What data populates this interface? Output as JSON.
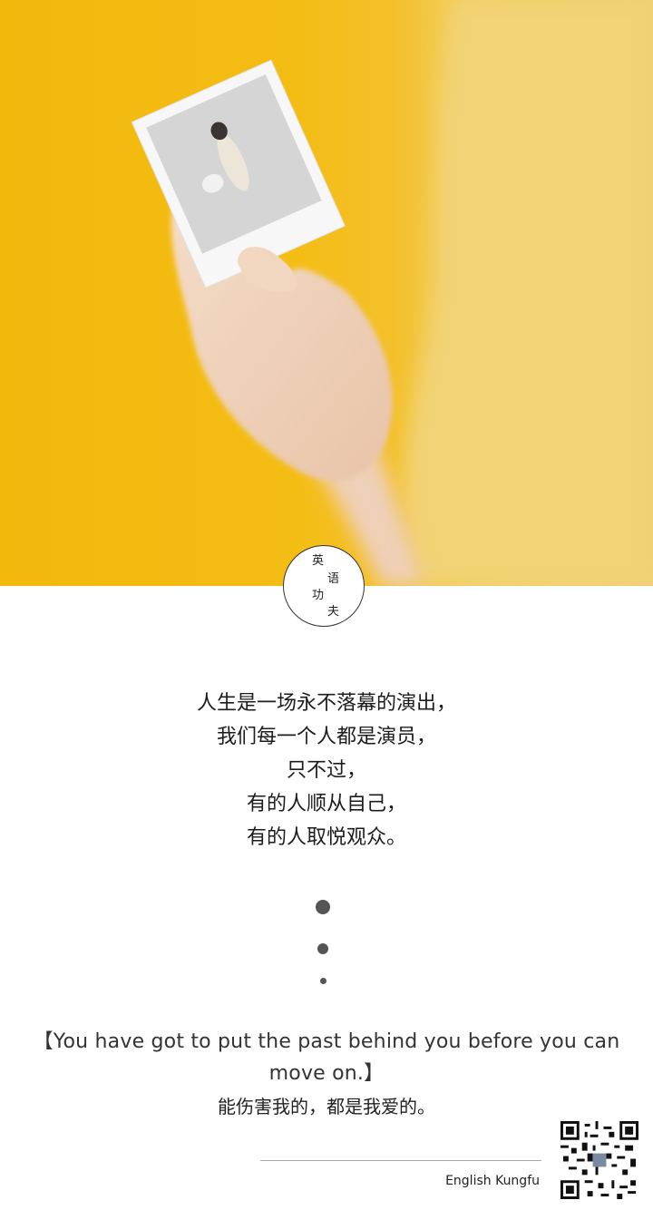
{
  "badge": {
    "chars": [
      "英",
      "语",
      "功",
      "夫"
    ]
  },
  "poem": {
    "lines": [
      "人生是一场永不落幕的演出，",
      "我们每一个人都是演员，",
      "只不过，",
      "有的人顺从自己，",
      "有的人取悦观众。"
    ]
  },
  "quote": {
    "english_line1": "【You have got to put the past behind you before you can",
    "english_line2": "move on.】",
    "chinese": "能伤害我的，都是我爱的。"
  },
  "footer": {
    "brand": "English Kungfu"
  },
  "icons": {
    "qr": "qr-code-icon",
    "photo": "hand-holding-instant-photo"
  },
  "colors": {
    "background_yellow": "#f2b80c",
    "dots": "#555555"
  }
}
